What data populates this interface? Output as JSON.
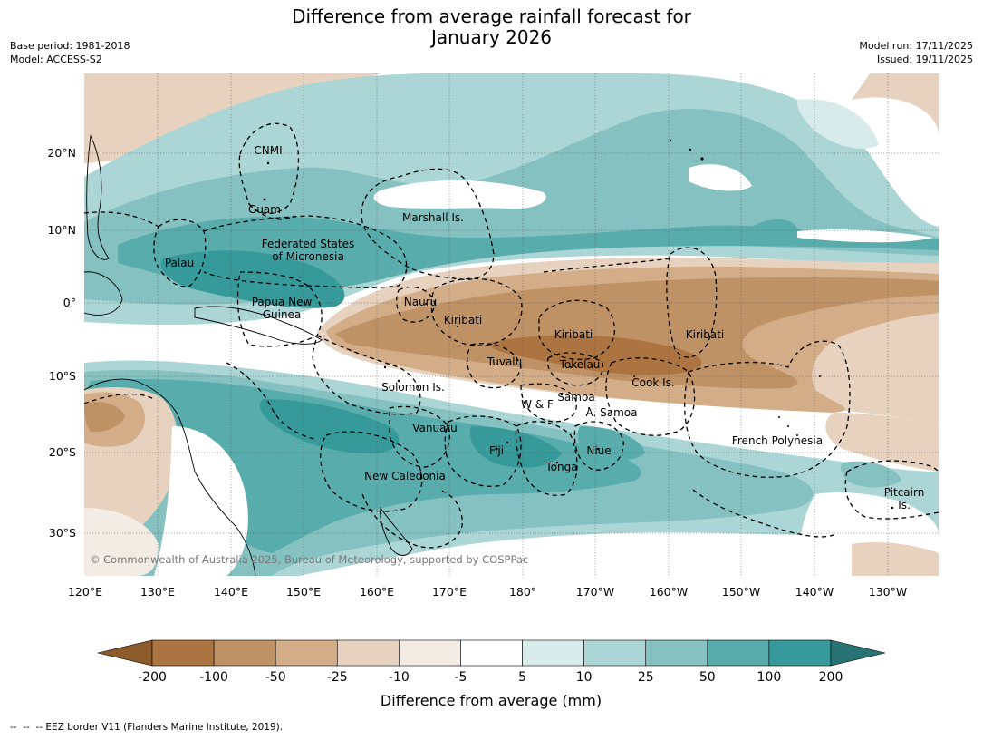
{
  "header": {
    "title_line1": "Difference from average rainfall forecast for",
    "title_line2": "January 2026",
    "base_period": "Base period: 1981-2018",
    "model": "Model: ACCESS-S2",
    "model_run": "Model run: 17/11/2025",
    "issued": "Issued: 19/11/2025"
  },
  "map": {
    "lat_labels": [
      "20°N",
      "10°N",
      "0°",
      "10°S",
      "20°S",
      "30°S"
    ],
    "lon_labels": [
      "120°E",
      "130°E",
      "140°E",
      "150°E",
      "160°E",
      "170°E",
      "180°",
      "170°W",
      "160°W",
      "150°W",
      "140°W",
      "130°W"
    ],
    "regions": [
      {
        "lines": [
          "CNMI"
        ]
      },
      {
        "lines": [
          "Guam"
        ]
      },
      {
        "lines": [
          "Marshall Is."
        ]
      },
      {
        "lines": [
          "Federated States",
          "of Micronesia"
        ]
      },
      {
        "lines": [
          "Palau"
        ]
      },
      {
        "lines": [
          "Papua New",
          "Guinea"
        ]
      },
      {
        "lines": [
          "Nauru"
        ]
      },
      {
        "lines": [
          "Kiribati"
        ]
      },
      {
        "lines": [
          "Kiribati"
        ]
      },
      {
        "lines": [
          "Kiribati"
        ]
      },
      {
        "lines": [
          "Tuvalu"
        ]
      },
      {
        "lines": [
          "Tokelau"
        ]
      },
      {
        "lines": [
          "Cook Is."
        ]
      },
      {
        "lines": [
          "Solomon Is."
        ]
      },
      {
        "lines": [
          "Samoa"
        ]
      },
      {
        "lines": [
          "W & F"
        ]
      },
      {
        "lines": [
          "A. Samoa"
        ]
      },
      {
        "lines": [
          "Vanuatu"
        ]
      },
      {
        "lines": [
          "Fiji"
        ]
      },
      {
        "lines": [
          "Niue"
        ]
      },
      {
        "lines": [
          "Tonga"
        ]
      },
      {
        "lines": [
          "New Caledonia"
        ]
      },
      {
        "lines": [
          "French Polynesia"
        ]
      },
      {
        "lines": [
          "Pitcairn",
          "Is."
        ]
      }
    ],
    "copyright": "© Commonwealth of Australia 2025, Bureau of Meteorology, supported by COSPPac"
  },
  "colorbar": {
    "ticks": [
      "-200",
      "-100",
      "-50",
      "-25",
      "-10",
      "-5",
      "5",
      "10",
      "25",
      "50",
      "100",
      "200"
    ],
    "colors": [
      "#8c5a2b",
      "#ab7440",
      "#bf9266",
      "#d2ad88",
      "#e6d2bf",
      "#f3ece4",
      "#ffffff",
      "#d6ebea",
      "#abd6d5",
      "#84c1c0",
      "#58acab",
      "#36999a",
      "#2a7374"
    ],
    "title": "Difference from average (mm)"
  },
  "footnote": "--  --  -- EEZ border V11 (Flanders Marine Institute, 2019)."
}
